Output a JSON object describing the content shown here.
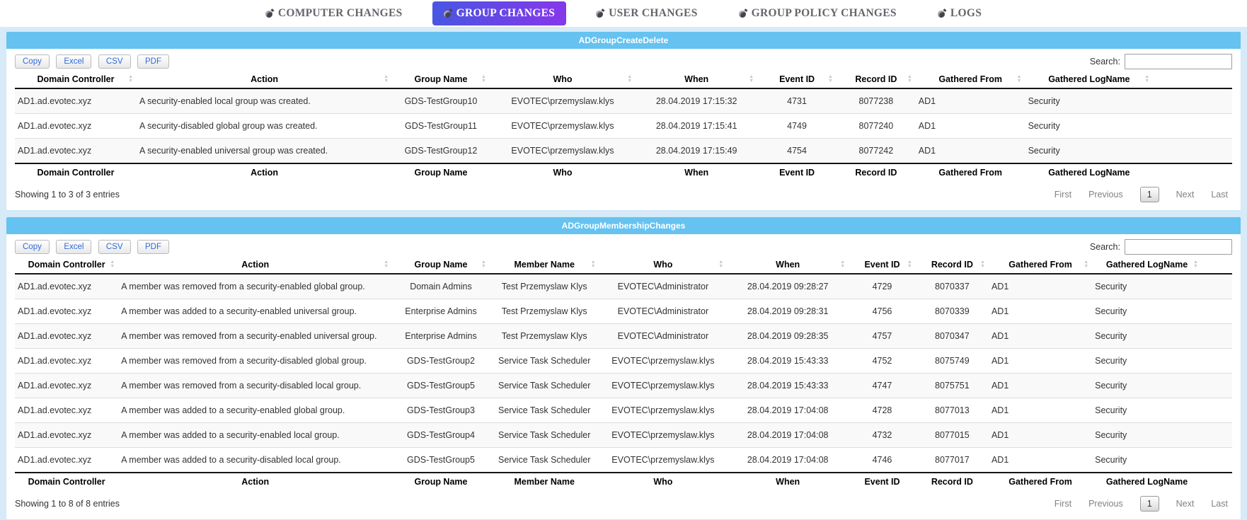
{
  "tabs": {
    "items": [
      {
        "label": "COMPUTER CHANGES",
        "active": false
      },
      {
        "label": "GROUP CHANGES",
        "active": true
      },
      {
        "label": "USER CHANGES",
        "active": false
      },
      {
        "label": "GROUP POLICY CHANGES",
        "active": false
      },
      {
        "label": "LOGS",
        "active": false
      }
    ]
  },
  "icons": {
    "tab_bullet": "dark-sphere-bullet",
    "sort_ascending": "▲",
    "sort_descending": "▼"
  },
  "colors": {
    "active_tab_gradient_start": "#4956e3",
    "active_tab_gradient_end": "#8637ea",
    "table_title_bar": "#66c2f0",
    "page_background": "#d6ebf7",
    "button_text": "#2e6bd8"
  },
  "toolbar": {
    "buttons": [
      "Copy",
      "Excel",
      "CSV",
      "PDF"
    ],
    "search_label": "Search:",
    "search_value": ""
  },
  "pagination": {
    "first": "First",
    "previous": "Previous",
    "current_page": "1",
    "next": "Next",
    "last": "Last"
  },
  "tables": [
    {
      "title": "ADGroupCreateDelete",
      "columns": [
        {
          "label": "Domain Controller"
        },
        {
          "label": "Action"
        },
        {
          "label": "Group Name"
        },
        {
          "label": "Who"
        },
        {
          "label": "When"
        },
        {
          "label": "Event ID"
        },
        {
          "label": "Record ID"
        },
        {
          "label": "Gathered From"
        },
        {
          "label": "Gathered LogName"
        }
      ],
      "aligns": [
        "l",
        "l",
        "c",
        "c",
        "c",
        "c",
        "c",
        "l",
        "l"
      ],
      "rows": [
        [
          "AD1.ad.evotec.xyz",
          "A security-enabled local group was created.",
          "GDS-TestGroup10",
          "EVOTEC\\przemyslaw.klys",
          "28.04.2019 17:15:32",
          "4731",
          "8077238",
          "AD1",
          "Security"
        ],
        [
          "AD1.ad.evotec.xyz",
          "A security-disabled global group was created.",
          "GDS-TestGroup11",
          "EVOTEC\\przemyslaw.klys",
          "28.04.2019 17:15:41",
          "4749",
          "8077240",
          "AD1",
          "Security"
        ],
        [
          "AD1.ad.evotec.xyz",
          "A security-enabled universal group was created.",
          "GDS-TestGroup12",
          "EVOTEC\\przemyslaw.klys",
          "28.04.2019 17:15:49",
          "4754",
          "8077242",
          "AD1",
          "Security"
        ]
      ],
      "info": "Showing 1 to 3 of 3 entries"
    },
    {
      "title": "ADGroupMembershipChanges",
      "columns": [
        {
          "label": "Domain Controller"
        },
        {
          "label": "Action"
        },
        {
          "label": "Group Name"
        },
        {
          "label": "Member Name"
        },
        {
          "label": "Who"
        },
        {
          "label": "When"
        },
        {
          "label": "Event ID"
        },
        {
          "label": "Record ID"
        },
        {
          "label": "Gathered From"
        },
        {
          "label": "Gathered LogName"
        }
      ],
      "aligns": [
        "l",
        "l",
        "c",
        "c",
        "c",
        "c",
        "c",
        "c",
        "l",
        "l"
      ],
      "rows": [
        [
          "AD1.ad.evotec.xyz",
          "A member was removed from a security-enabled global group.",
          "Domain Admins",
          "Test Przemyslaw Klys",
          "EVOTEC\\Administrator",
          "28.04.2019 09:28:27",
          "4729",
          "8070337",
          "AD1",
          "Security"
        ],
        [
          "AD1.ad.evotec.xyz",
          "A member was added to a security-enabled universal group.",
          "Enterprise Admins",
          "Test Przemyslaw Klys",
          "EVOTEC\\Administrator",
          "28.04.2019 09:28:31",
          "4756",
          "8070339",
          "AD1",
          "Security"
        ],
        [
          "AD1.ad.evotec.xyz",
          "A member was removed from a security-enabled universal group.",
          "Enterprise Admins",
          "Test Przemyslaw Klys",
          "EVOTEC\\Administrator",
          "28.04.2019 09:28:35",
          "4757",
          "8070347",
          "AD1",
          "Security"
        ],
        [
          "AD1.ad.evotec.xyz",
          "A member was removed from a security-disabled global group.",
          "GDS-TestGroup2",
          "Service Task Scheduler",
          "EVOTEC\\przemyslaw.klys",
          "28.04.2019 15:43:33",
          "4752",
          "8075749",
          "AD1",
          "Security"
        ],
        [
          "AD1.ad.evotec.xyz",
          "A member was removed from a security-disabled local group.",
          "GDS-TestGroup5",
          "Service Task Scheduler",
          "EVOTEC\\przemyslaw.klys",
          "28.04.2019 15:43:33",
          "4747",
          "8075751",
          "AD1",
          "Security"
        ],
        [
          "AD1.ad.evotec.xyz",
          "A member was added to a security-enabled global group.",
          "GDS-TestGroup3",
          "Service Task Scheduler",
          "EVOTEC\\przemyslaw.klys",
          "28.04.2019 17:04:08",
          "4728",
          "8077013",
          "AD1",
          "Security"
        ],
        [
          "AD1.ad.evotec.xyz",
          "A member was added to a security-enabled local group.",
          "GDS-TestGroup4",
          "Service Task Scheduler",
          "EVOTEC\\przemyslaw.klys",
          "28.04.2019 17:04:08",
          "4732",
          "8077015",
          "AD1",
          "Security"
        ],
        [
          "AD1.ad.evotec.xyz",
          "A member was added to a security-disabled local group.",
          "GDS-TestGroup5",
          "Service Task Scheduler",
          "EVOTEC\\przemyslaw.klys",
          "28.04.2019 17:04:08",
          "4746",
          "8077017",
          "AD1",
          "Security"
        ]
      ],
      "info": "Showing 1 to 8 of 8 entries"
    }
  ]
}
